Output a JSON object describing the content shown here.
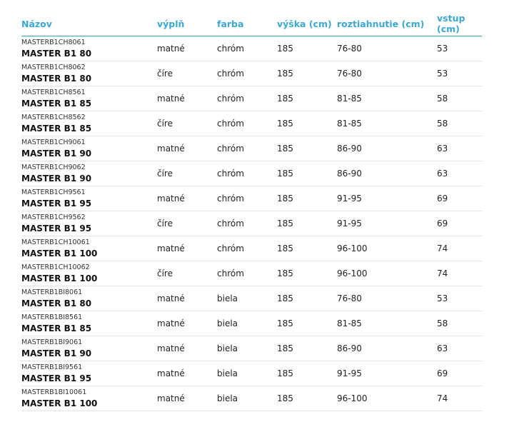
{
  "headers": [
    "Názov",
    "výplň",
    "farba",
    "výška (cm)",
    "roztiahnutie (cm)",
    "vstup (cm)"
  ],
  "rows": [
    {
      "code": "MASTERB1CH8061",
      "name": "MASTER B1 80",
      "fill": "matné",
      "color": "chróm",
      "height": "185",
      "range": "76-80",
      "entry": "53"
    },
    {
      "code": "MASTERB1CH8062",
      "name": "MASTER B1 80",
      "fill": "číre",
      "color": "chróm",
      "height": "185",
      "range": "76-80",
      "entry": "53"
    },
    {
      "code": "MASTERB1CH8561",
      "name": "MASTER B1 85",
      "fill": "matné",
      "color": "chróm",
      "height": "185",
      "range": "81-85",
      "entry": "58"
    },
    {
      "code": "MASTERB1CH8562",
      "name": "MASTER B1 85",
      "fill": "číre",
      "color": "chróm",
      "height": "185",
      "range": "81-85",
      "entry": "58"
    },
    {
      "code": "MASTERB1CH9061",
      "name": "MASTER B1 90",
      "fill": "matné",
      "color": "chróm",
      "height": "185",
      "range": "86-90",
      "entry": "63"
    },
    {
      "code": "MASTERB1CH9062",
      "name": "MASTER B1 90",
      "fill": "číre",
      "color": "chróm",
      "height": "185",
      "range": "86-90",
      "entry": "63"
    },
    {
      "code": "MASTERB1CH9561",
      "name": "MASTER B1 95",
      "fill": "matné",
      "color": "chróm",
      "height": "185",
      "range": "91-95",
      "entry": "69"
    },
    {
      "code": "MASTERB1CH9562",
      "name": "MASTER B1 95",
      "fill": "číre",
      "color": "chróm",
      "height": "185",
      "range": "91-95",
      "entry": "69"
    },
    {
      "code": "MASTERB1CH10061",
      "name": "MASTER B1 100",
      "fill": "matné",
      "color": "chróm",
      "height": "185",
      "range": "96-100",
      "entry": "74"
    },
    {
      "code": "MASTERB1CH10062",
      "name": "MASTER B1 100",
      "fill": "číre",
      "color": "chróm",
      "height": "185",
      "range": "96-100",
      "entry": "74"
    },
    {
      "code": "MASTERB1BI8061",
      "name": "MASTER B1 80",
      "fill": "matné",
      "color": "biela",
      "height": "185",
      "range": "76-80",
      "entry": "53"
    },
    {
      "code": "MASTERB1BI8561",
      "name": "MASTER B1 85",
      "fill": "matné",
      "color": "biela",
      "height": "185",
      "range": "81-85",
      "entry": "58"
    },
    {
      "code": "MASTERB1BI9061",
      "name": "MASTER B1 90",
      "fill": "matné",
      "color": "biela",
      "height": "185",
      "range": "86-90",
      "entry": "63"
    },
    {
      "code": "MASTERB1BI9561",
      "name": "MASTER B1 95",
      "fill": "matné",
      "color": "biela",
      "height": "185",
      "range": "91-95",
      "entry": "69"
    },
    {
      "code": "MASTERB1BI10061",
      "name": "MASTER B1 100",
      "fill": "matné",
      "color": "biela",
      "height": "185",
      "range": "96-100",
      "entry": "74"
    }
  ],
  "colors": {
    "header_text": "#3ba8d4",
    "header_rule": "#3ba3b5"
  }
}
